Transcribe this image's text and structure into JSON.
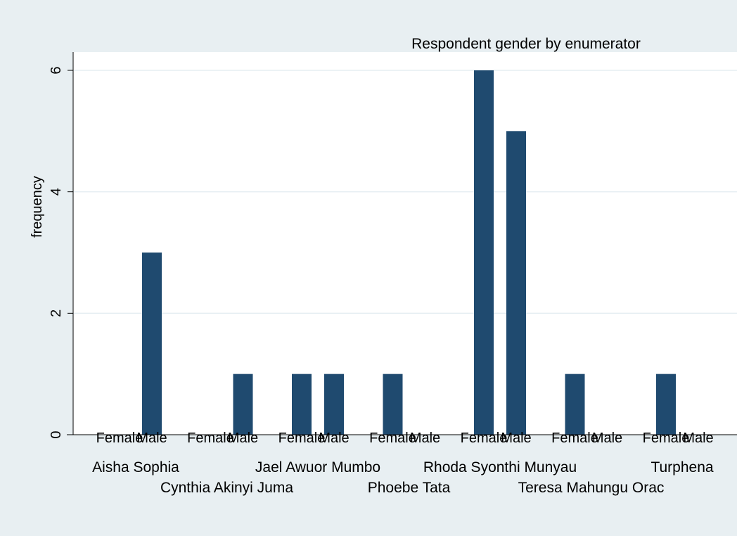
{
  "chart_data": {
    "type": "bar",
    "title": "Respondent gender by enumerator",
    "xlabel": "",
    "ylabel": "frequency",
    "ylim": [
      0,
      6
    ],
    "yticks": [
      0,
      2,
      4,
      6
    ],
    "grid": true,
    "bar_color": "#1f4a6f",
    "background_color": "#e8eff2",
    "plot_background_color": "#ffffff",
    "gridline_color": "#e5eef2",
    "groups": [
      {
        "name": "Aisha Sophia",
        "bars": [
          {
            "label": "Female",
            "value": 0
          },
          {
            "label": "Male",
            "value": 3
          }
        ]
      },
      {
        "name": "Cynthia Akinyi Juma",
        "bars": [
          {
            "label": "Female",
            "value": 0
          },
          {
            "label": "Male",
            "value": 1
          }
        ]
      },
      {
        "name": "Jael Awuor Mumbo",
        "bars": [
          {
            "label": "Female",
            "value": 1
          },
          {
            "label": "Male",
            "value": 1
          }
        ]
      },
      {
        "name": "Phoebe Tata",
        "bars": [
          {
            "label": "Female",
            "value": 1
          },
          {
            "label": "Male",
            "value": 0
          }
        ]
      },
      {
        "name": "Rhoda Syonthi Munyau",
        "bars": [
          {
            "label": "Female",
            "value": 6
          },
          {
            "label": "Male",
            "value": 5
          }
        ]
      },
      {
        "name": "Teresa Mahungu Orac",
        "bars": [
          {
            "label": "Female",
            "value": 1
          },
          {
            "label": "Male",
            "value": 0
          }
        ]
      },
      {
        "name": "Turphena",
        "bars": [
          {
            "label": "Female",
            "value": 1
          },
          {
            "label": "Male",
            "value": 0
          }
        ]
      }
    ]
  }
}
